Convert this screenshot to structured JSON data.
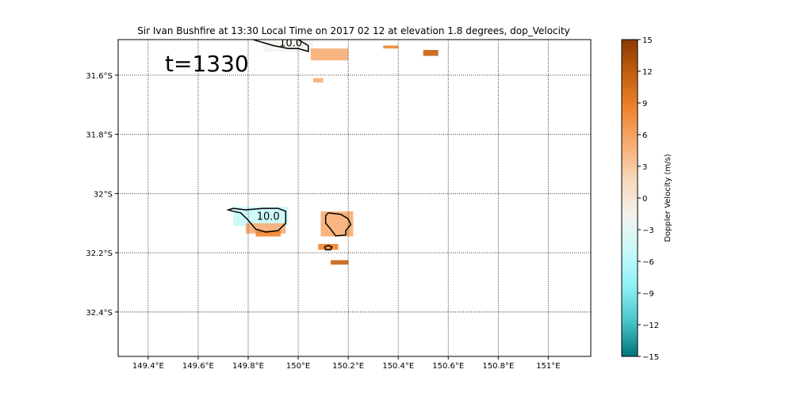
{
  "chart_data": {
    "type": "heatmap",
    "title": "Sir Ivan Bushfire at 13:30 Local Time on 2017 02 12 at elevation 1.8 degrees, dop_Velocity",
    "annotation": "t=1330",
    "xlim": [
      149.28,
      151.17
    ],
    "ylim": [
      -32.55,
      -31.48
    ],
    "x_ticks": [
      {
        "value": 149.4,
        "label": "149.4°E"
      },
      {
        "value": 149.6,
        "label": "149.6°E"
      },
      {
        "value": 149.8,
        "label": "149.8°E"
      },
      {
        "value": 150.0,
        "label": "150°E"
      },
      {
        "value": 150.2,
        "label": "150.2°E"
      },
      {
        "value": 150.4,
        "label": "150.4°E"
      },
      {
        "value": 150.6,
        "label": "150.6°E"
      },
      {
        "value": 150.8,
        "label": "150.8°E"
      },
      {
        "value": 151.0,
        "label": "151°E"
      }
    ],
    "y_ticks": [
      {
        "value": -31.6,
        "label": "31.6°S"
      },
      {
        "value": -31.8,
        "label": "31.8°S"
      },
      {
        "value": -32.0,
        "label": "32°S"
      },
      {
        "value": -32.2,
        "label": "32.2°S"
      },
      {
        "value": -32.4,
        "label": "32.4°S"
      }
    ],
    "grid": true,
    "grid_style": "dotted",
    "colorbar": {
      "label": "Doppler Velocity (m/s)",
      "min": -15,
      "max": 15,
      "ticks": [
        {
          "value": -15,
          "label": "−15"
        },
        {
          "value": -12,
          "label": "−12"
        },
        {
          "value": -9,
          "label": "−9"
        },
        {
          "value": -6,
          "label": "−6"
        },
        {
          "value": -3,
          "label": "−3"
        },
        {
          "value": 0,
          "label": "0"
        },
        {
          "value": 3,
          "label": "3"
        },
        {
          "value": 6,
          "label": "6"
        },
        {
          "value": 9,
          "label": "9"
        },
        {
          "value": 12,
          "label": "12"
        },
        {
          "value": 15,
          "label": "15"
        }
      ],
      "colors": [
        "#00737a",
        "#48c5ca",
        "#8ff2f7",
        "#c8f8fa",
        "#f3f3ee",
        "#f8d9bb",
        "#f7ad73",
        "#f0852f",
        "#c5600e",
        "#8a3a02"
      ]
    },
    "contours": [
      {
        "level_label": "10.0",
        "label_at": [
          149.88,
          -32.075
        ],
        "path": [
          [
            149.74,
            -32.05
          ],
          [
            149.79,
            -32.055
          ],
          [
            149.86,
            -32.05
          ],
          [
            149.92,
            -32.05
          ],
          [
            149.95,
            -32.06
          ],
          [
            149.95,
            -32.1
          ],
          [
            149.92,
            -32.125
          ],
          [
            149.87,
            -32.13
          ],
          [
            149.83,
            -32.12
          ],
          [
            149.8,
            -32.09
          ],
          [
            149.77,
            -32.065
          ],
          [
            149.74,
            -32.06
          ],
          [
            149.72,
            -32.055
          ],
          [
            149.74,
            -32.05
          ]
        ]
      },
      {
        "level_label": "",
        "path": [
          [
            150.12,
            -32.065
          ],
          [
            150.17,
            -32.07
          ],
          [
            150.2,
            -32.085
          ],
          [
            150.21,
            -32.105
          ],
          [
            150.19,
            -32.125
          ],
          [
            150.19,
            -32.14
          ],
          [
            150.15,
            -32.143
          ],
          [
            150.13,
            -32.12
          ],
          [
            150.11,
            -32.1
          ],
          [
            150.11,
            -32.075
          ],
          [
            150.12,
            -32.065
          ]
        ]
      },
      {
        "level_label": "",
        "path": [
          [
            150.105,
            -32.18
          ],
          [
            150.12,
            -32.175
          ],
          [
            150.135,
            -32.18
          ],
          [
            150.13,
            -32.19
          ],
          [
            150.11,
            -32.19
          ],
          [
            150.105,
            -32.18
          ]
        ]
      },
      {
        "level_label": "10.0",
        "label_at": [
          149.97,
          -31.49
        ],
        "path": [
          [
            149.82,
            -31.48
          ],
          [
            149.9,
            -31.5
          ],
          [
            149.96,
            -31.51
          ],
          [
            150.0,
            -31.51
          ],
          [
            150.04,
            -31.52
          ],
          [
            150.04,
            -31.5
          ],
          [
            150.0,
            -31.48
          ]
        ]
      }
    ],
    "velocity_patches": [
      {
        "lon": [
          149.74,
          149.96
        ],
        "lat": [
          -32.11,
          -32.045
        ],
        "value": -5
      },
      {
        "lon": [
          149.79,
          149.95
        ],
        "lat": [
          -32.135,
          -32.1
        ],
        "value": 4
      },
      {
        "lon": [
          149.83,
          149.93
        ],
        "lat": [
          -32.145,
          -32.125
        ],
        "value": 7
      },
      {
        "lon": [
          150.09,
          150.22
        ],
        "lat": [
          -32.145,
          -32.06
        ],
        "value": 4
      },
      {
        "lon": [
          150.08,
          150.16
        ],
        "lat": [
          -32.19,
          -32.17
        ],
        "value": 6
      },
      {
        "lon": [
          150.13,
          150.2
        ],
        "lat": [
          -32.24,
          -32.225
        ],
        "value": 9
      },
      {
        "lon": [
          149.86,
          150.06
        ],
        "lat": [
          -31.52,
          -31.48
        ],
        "value": -3
      },
      {
        "lon": [
          150.05,
          150.2
        ],
        "lat": [
          -31.55,
          -31.51
        ],
        "value": 4
      },
      {
        "lon": [
          150.34,
          150.4
        ],
        "lat": [
          -31.51,
          -31.5
        ],
        "value": 8
      },
      {
        "lon": [
          150.5,
          150.56
        ],
        "lat": [
          -31.535,
          -31.515
        ],
        "value": 10
      },
      {
        "lon": [
          150.06,
          150.1
        ],
        "lat": [
          -31.625,
          -31.61
        ],
        "value": 3
      }
    ]
  }
}
